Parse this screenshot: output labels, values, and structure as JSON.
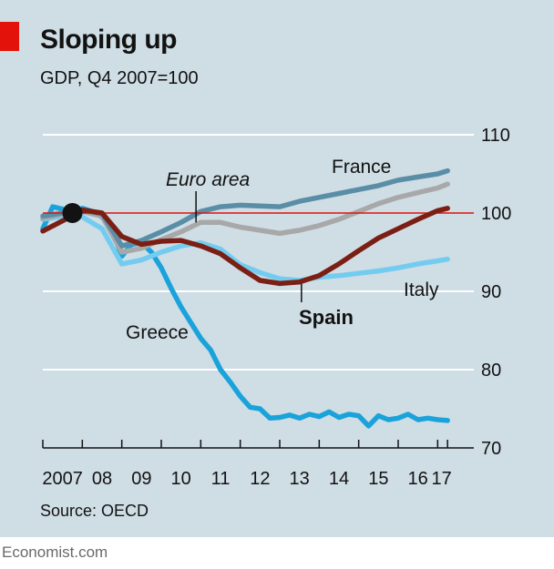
{
  "title": "Sloping up",
  "subtitle": "GDP, Q4 2007=100",
  "source": "Source: OECD",
  "brand": "Economist.com",
  "colors": {
    "background": "#cfdde5",
    "accent_red": "#e3120b",
    "france": "#5a8ea6",
    "euro_area": "#a8a8a8",
    "spain": "#7b1f14",
    "italy": "#73ccf0",
    "greece": "#1aa3da",
    "gridline": "#ffffff",
    "baseline": "#e3120b"
  },
  "chart_data": {
    "type": "line",
    "title": "Sloping up",
    "subtitle": "GDP, Q4 2007=100",
    "xlabel": "",
    "ylabel": "",
    "xlim": [
      2007.0,
      2017.5
    ],
    "ylim": [
      70,
      110
    ],
    "yticks": [
      70,
      80,
      90,
      100,
      110
    ],
    "x_tick_labels": [
      "2007",
      "08",
      "09",
      "10",
      "11",
      "12",
      "13",
      "14",
      "15",
      "16",
      "17"
    ],
    "x_tick_positions": [
      2007.5,
      2008.5,
      2009.5,
      2010.5,
      2011.5,
      2012.5,
      2013.5,
      2014.5,
      2015.5,
      2016.5,
      2017.1
    ],
    "reference_line": 100,
    "marker": {
      "x": 2007.75,
      "y": 100
    },
    "series": [
      {
        "name": "France",
        "label": "France",
        "x": [
          2007.0,
          2007.5,
          2008.0,
          2008.5,
          2009.0,
          2009.5,
          2010.0,
          2010.5,
          2011.0,
          2011.5,
          2012.0,
          2012.5,
          2013.0,
          2013.5,
          2014.0,
          2014.5,
          2015.0,
          2015.5,
          2016.0,
          2016.5,
          2017.0,
          2017.25
        ],
        "values": [
          99.6,
          100.0,
          100.4,
          99.9,
          95.8,
          96.5,
          97.6,
          98.8,
          100.2,
          100.8,
          101.0,
          100.9,
          100.8,
          101.5,
          102.0,
          102.5,
          103.0,
          103.5,
          104.2,
          104.6,
          105.0,
          105.4
        ]
      },
      {
        "name": "Euro area",
        "label": "Euro area",
        "x": [
          2007.0,
          2007.5,
          2008.0,
          2008.5,
          2009.0,
          2009.5,
          2010.0,
          2010.5,
          2011.0,
          2011.5,
          2012.0,
          2012.5,
          2013.0,
          2013.5,
          2014.0,
          2014.5,
          2015.0,
          2015.5,
          2016.0,
          2016.5,
          2017.0,
          2017.25
        ],
        "values": [
          99.3,
          99.9,
          100.2,
          99.6,
          95.0,
          95.5,
          96.6,
          97.6,
          98.8,
          98.8,
          98.2,
          97.8,
          97.4,
          97.8,
          98.4,
          99.2,
          100.2,
          101.2,
          102.0,
          102.6,
          103.2,
          103.7
        ]
      },
      {
        "name": "Spain",
        "label": "Spain",
        "x": [
          2007.0,
          2007.5,
          2008.0,
          2008.5,
          2009.0,
          2009.5,
          2010.0,
          2010.5,
          2011.0,
          2011.5,
          2012.0,
          2012.5,
          2013.0,
          2013.5,
          2014.0,
          2014.5,
          2015.0,
          2015.5,
          2016.0,
          2016.5,
          2017.0,
          2017.25
        ],
        "values": [
          97.7,
          99.0,
          100.4,
          100.0,
          97.0,
          96.0,
          96.4,
          96.5,
          95.8,
          94.8,
          93.0,
          91.4,
          91.0,
          91.2,
          92.0,
          93.5,
          95.2,
          96.8,
          98.0,
          99.2,
          100.3,
          100.6
        ]
      },
      {
        "name": "Italy",
        "label": "Italy",
        "x": [
          2007.0,
          2007.5,
          2008.0,
          2008.5,
          2009.0,
          2009.5,
          2010.0,
          2010.5,
          2011.0,
          2011.5,
          2012.0,
          2012.5,
          2013.0,
          2013.5,
          2014.0,
          2014.5,
          2015.0,
          2015.5,
          2016.0,
          2016.5,
          2017.0,
          2017.25
        ],
        "values": [
          99.2,
          99.6,
          99.5,
          98.0,
          93.5,
          94.0,
          95.0,
          95.8,
          96.2,
          95.4,
          93.4,
          92.4,
          91.6,
          91.4,
          91.8,
          92.0,
          92.3,
          92.6,
          93.0,
          93.5,
          93.9,
          94.1
        ]
      },
      {
        "name": "Greece",
        "label": "Greece",
        "x": [
          2007.0,
          2007.25,
          2007.5,
          2007.75,
          2008.0,
          2008.25,
          2008.5,
          2008.75,
          2009.0,
          2009.25,
          2009.5,
          2009.75,
          2010.0,
          2010.25,
          2010.5,
          2010.75,
          2011.0,
          2011.25,
          2011.5,
          2011.75,
          2012.0,
          2012.25,
          2012.5,
          2012.75,
          2013.0,
          2013.25,
          2013.5,
          2013.75,
          2014.0,
          2014.25,
          2014.5,
          2014.75,
          2015.0,
          2015.25,
          2015.5,
          2015.75,
          2016.0,
          2016.25,
          2016.5,
          2016.75,
          2017.0,
          2017.25
        ],
        "values": [
          98.0,
          100.8,
          100.5,
          100.0,
          100.6,
          100.2,
          99.5,
          98.0,
          94.5,
          96.0,
          96.2,
          95.0,
          93.0,
          90.4,
          88.0,
          86.0,
          84.0,
          82.5,
          80.0,
          78.4,
          76.6,
          75.2,
          75.0,
          73.8,
          73.9,
          74.2,
          73.8,
          74.3,
          74.0,
          74.6,
          73.9,
          74.3,
          74.1,
          72.8,
          74.1,
          73.6,
          73.8,
          74.3,
          73.6,
          73.8,
          73.6,
          73.5
        ]
      }
    ]
  }
}
